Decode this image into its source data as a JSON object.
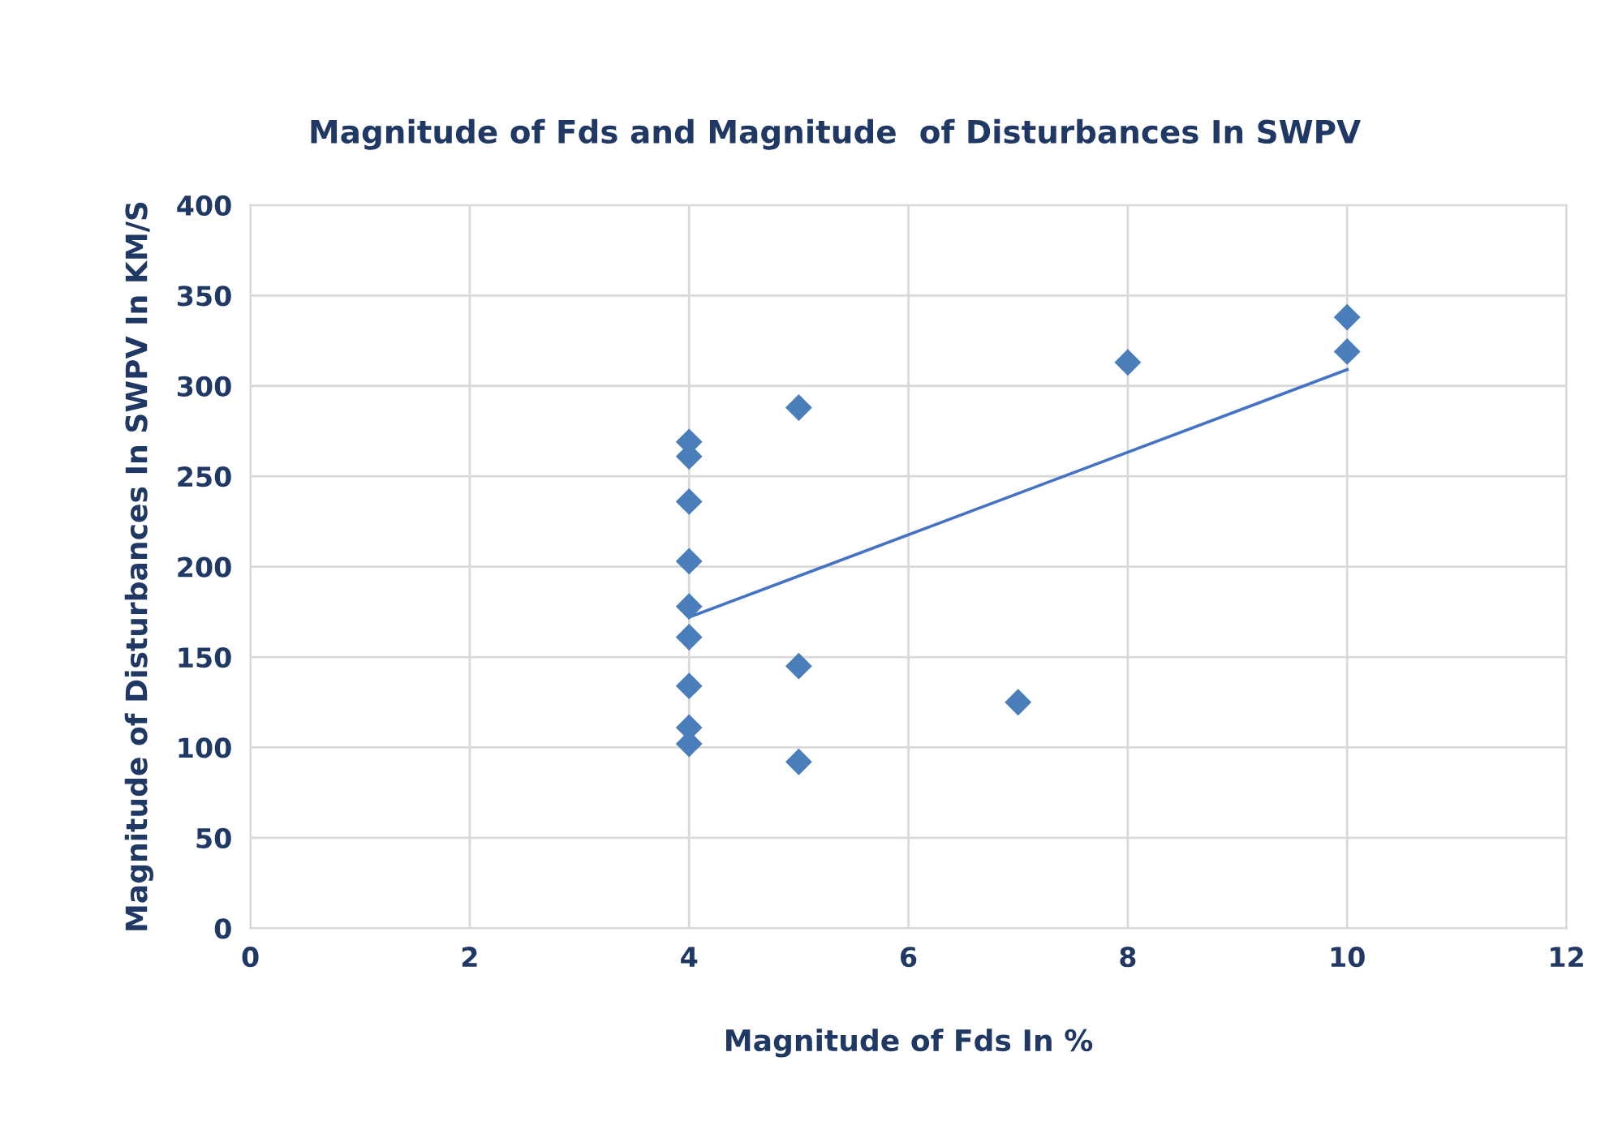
{
  "chart_data": {
    "type": "scatter",
    "title": "Magnitude of Fds and Magnitude  of Disturbances In SWPV",
    "xlabel": "Magnitude of Fds In %",
    "ylabel": "Magnitude of Disturbances In SWPV In KM/S",
    "series": [
      {
        "color": "#4a7ebb",
        "marker": "diamond",
        "x": [
          4,
          4,
          4,
          4,
          4,
          4,
          4,
          4,
          4,
          5,
          5,
          5,
          7,
          8,
          10,
          10
        ],
        "values": [
          269,
          261,
          236,
          203,
          178,
          161,
          134,
          111,
          102,
          288,
          145,
          92,
          125,
          313,
          338,
          319
        ]
      },
      {
        "type": "line",
        "color": "#4472c4",
        "marker": "none",
        "x": [
          4,
          10
        ],
        "values": [
          172,
          309
        ]
      }
    ],
    "xlim": [
      0,
      12
    ],
    "xticks": [
      0,
      2,
      4,
      6,
      8,
      10,
      12
    ],
    "ylim": [
      0,
      400
    ],
    "yticks": [
      0,
      50,
      100,
      150,
      200,
      250,
      300,
      350,
      400
    ],
    "grid": true,
    "legend": false
  }
}
